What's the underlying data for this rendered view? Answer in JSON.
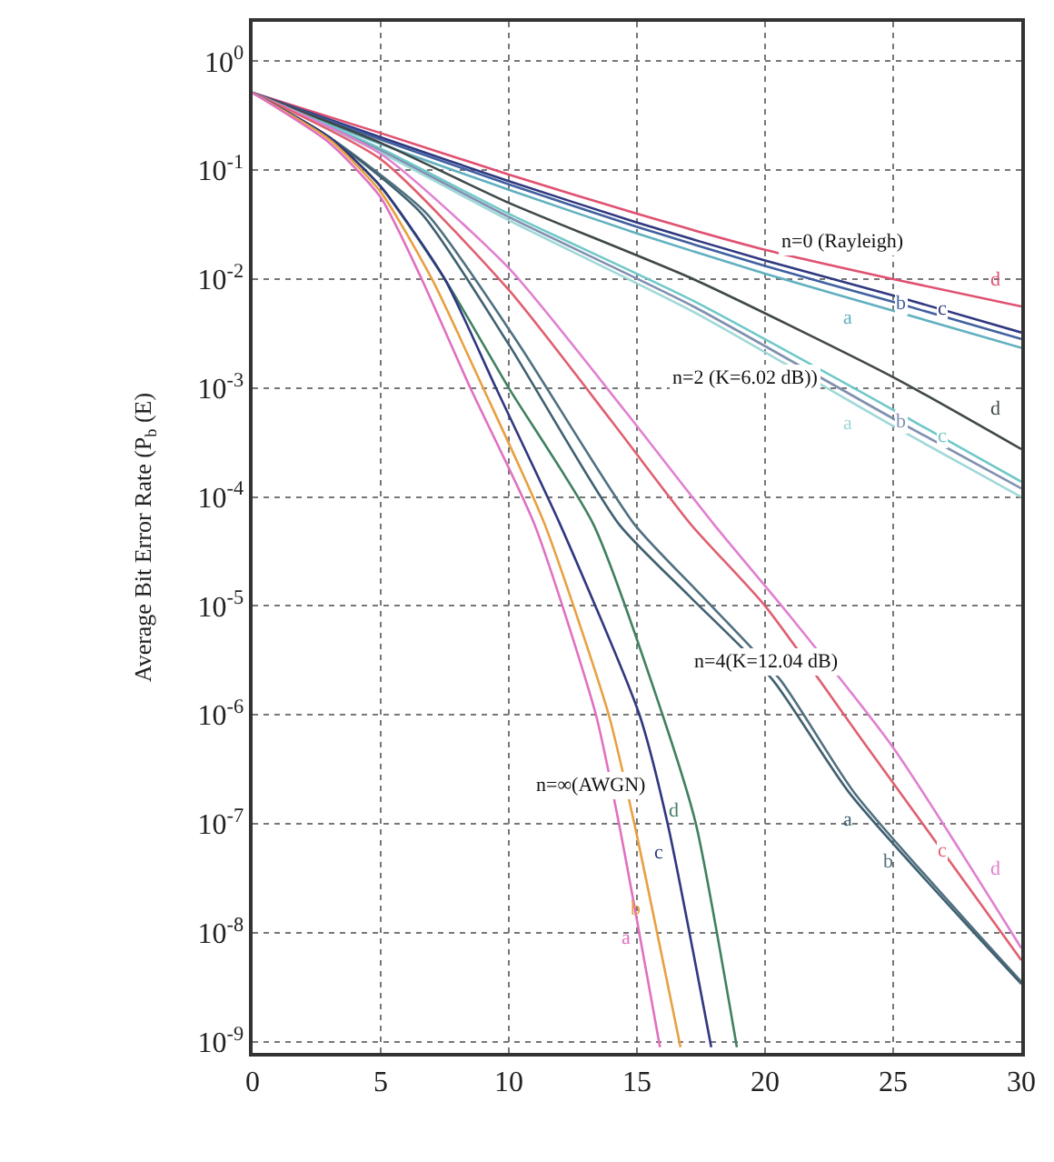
{
  "chart_data": {
    "type": "line",
    "ylabel": "Average Bit Error Rate (P$_{b}$ (E)",
    "log": "y",
    "grid": true,
    "legend": false,
    "marker": "none",
    "line_style": "solid",
    "xlim": [
      0,
      30
    ],
    "xticks": [
      0,
      5,
      10,
      15,
      20,
      25,
      30
    ],
    "ylim": [
      7.9e-10,
      2.3
    ],
    "yticks": [
      {
        "value": 1,
        "label": "10$^{0}$"
      },
      {
        "value": 0.1,
        "label": "10$^{-1}$"
      },
      {
        "value": 0.01,
        "label": "10$^{-2}$"
      },
      {
        "value": 0.001,
        "label": "10$^{-3}$"
      },
      {
        "value": 0.0001,
        "label": "10$^{-4}$"
      },
      {
        "value": 1e-05,
        "label": "10$^{-5}$"
      },
      {
        "value": 1e-06,
        "label": "10$^{-6}$"
      },
      {
        "value": 1e-07,
        "label": "10$^{-7}$"
      },
      {
        "value": 1e-08,
        "label": "10$^{-8}$"
      },
      {
        "value": 1e-09,
        "label": "10$^{-9}$"
      }
    ],
    "series": [
      {
        "name": "d",
        "color": "#e05070",
        "x": [
          0,
          5,
          10,
          15,
          20,
          25,
          30
        ],
        "values": [
          0.513,
          0.219,
          0.0912,
          0.0398,
          0.0186,
          0.01,
          0.00562
        ]
      },
      {
        "name": "c",
        "color": "#303880",
        "x": [
          0,
          5,
          10,
          15,
          20,
          25,
          30
        ],
        "values": [
          0.513,
          0.2,
          0.0794,
          0.0331,
          0.0148,
          0.00708,
          0.00324
        ]
      },
      {
        "name": "b",
        "color": "#4060a0",
        "x": [
          0,
          5,
          10,
          15,
          20,
          25,
          30
        ],
        "values": [
          0.513,
          0.191,
          0.0741,
          0.0302,
          0.0132,
          0.00617,
          0.00282
        ]
      },
      {
        "name": "a",
        "color": "#60b0c0",
        "x": [
          0,
          5,
          10,
          15,
          20,
          25,
          30
        ],
        "values": [
          0.513,
          0.174,
          0.0661,
          0.0263,
          0.0112,
          0.00513,
          0.00234
        ]
      },
      {
        "name": "d",
        "color": "#404848",
        "x": [
          0,
          5,
          10,
          17.2,
          25,
          30
        ],
        "values": [
          0.513,
          0.178,
          0.0501,
          0.01,
          0.00126,
          0.000275
        ]
      },
      {
        "name": "c",
        "color": "#70c8c8",
        "x": [
          0,
          5,
          10,
          17.2,
          25,
          30
        ],
        "values": [
          0.513,
          0.158,
          0.0398,
          0.00631,
          0.000631,
          0.000138
        ]
      },
      {
        "name": "b",
        "color": "#8090b0",
        "x": [
          0,
          5,
          10,
          17.2,
          25,
          30
        ],
        "values": [
          0.513,
          0.151,
          0.0372,
          0.00562,
          0.000525,
          0.00012
        ]
      },
      {
        "name": "a",
        "color": "#a0d8d8",
        "x": [
          0,
          5,
          10,
          17.2,
          25,
          30
        ],
        "values": [
          0.513,
          0.145,
          0.0347,
          0.00501,
          0.000447,
          0.0001
        ]
      },
      {
        "name": "d",
        "color": "#e080d0",
        "x": [
          0,
          5,
          10,
          14.5,
          18,
          21,
          25,
          30
        ],
        "values": [
          0.513,
          0.141,
          0.0126,
          0.000631,
          5.62e-05,
          7.94e-06,
          5.01e-07,
          7.24e-09
        ]
      },
      {
        "name": "c",
        "color": "#e06070",
        "x": [
          0,
          5,
          10,
          14,
          17.1,
          20,
          24,
          30
        ],
        "values": [
          0.513,
          0.126,
          0.00794,
          0.000501,
          5.62e-05,
          1e-05,
          5.01e-07,
          5.62e-09
        ]
      },
      {
        "name": "b",
        "color": "#507080",
        "x": [
          0,
          3,
          6.8,
          10.4,
          14.9,
          17.5,
          20.6,
          23.5,
          30
        ],
        "values": [
          0.513,
          0.2,
          0.0398,
          0.00251,
          5.62e-05,
          1.26e-05,
          2.09e-06,
          1.91e-07,
          3.55e-09
        ]
      },
      {
        "name": "a",
        "color": "#406070",
        "x": [
          0,
          3,
          6.6,
          10,
          14.3,
          17,
          20.3,
          23.3,
          30
        ],
        "values": [
          0.513,
          0.2,
          0.0398,
          0.00251,
          5.62e-05,
          1.26e-05,
          2.09e-06,
          1.91e-07,
          3.39e-09
        ]
      },
      {
        "name": "d",
        "color": "#408060",
        "x": [
          0,
          3,
          5,
          7.5,
          10,
          13.3,
          16.0,
          17.3,
          18.9
        ],
        "values": [
          0.513,
          0.2,
          0.0708,
          0.01,
          0.001,
          5.62e-05,
          1e-06,
          1e-07,
          8.91e-10
        ]
      },
      {
        "name": "c",
        "color": "#303880",
        "x": [
          0,
          3,
          5,
          7.5,
          9.5,
          12.0,
          15.1,
          16.2,
          17.9
        ],
        "values": [
          0.513,
          0.2,
          0.0708,
          0.01,
          0.001,
          5.62e-05,
          1e-06,
          1e-07,
          8.91e-10
        ]
      },
      {
        "name": "b",
        "color": "#e8a040",
        "x": [
          0,
          3,
          5,
          7,
          9,
          11.4,
          13.9,
          14.9,
          16.7
        ],
        "values": [
          0.513,
          0.191,
          0.0631,
          0.01,
          0.001,
          5.62e-05,
          1e-06,
          1e-07,
          8.91e-10
        ]
      },
      {
        "name": "a",
        "color": "#e070c0",
        "x": [
          0,
          3,
          5,
          6.6,
          8.5,
          11.0,
          13.4,
          14.3,
          15.9
        ],
        "values": [
          0.513,
          0.178,
          0.0562,
          0.01,
          0.001,
          5.62e-05,
          1e-06,
          1e-07,
          8.91e-10
        ]
      }
    ],
    "annotations": [
      "n=0 (Rayleigh)",
      "n=2 (K=6.02 dB))",
      "n=4(K=12.04 dB)",
      "n=∞(AWGN)"
    ]
  }
}
